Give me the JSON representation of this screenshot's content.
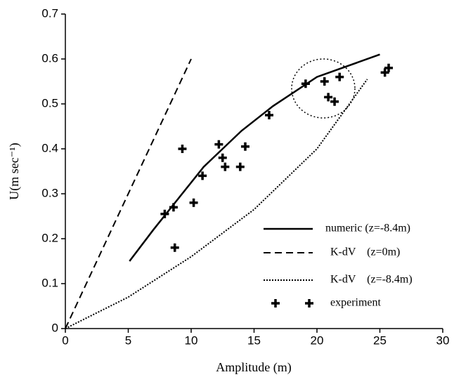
{
  "chart_data": {
    "type": "line",
    "xlabel": "Amplitude (m)",
    "ylabel": "U(m sec⁻¹)",
    "xlim": [
      0,
      30
    ],
    "ylim": [
      0,
      0.7
    ],
    "xticks": [
      0,
      5,
      10,
      15,
      20,
      25,
      30
    ],
    "yticks": [
      0,
      0.1,
      0.2,
      0.3,
      0.4,
      0.5,
      0.6,
      0.7
    ],
    "series": [
      {
        "name": "numeric (z=-8.4m)",
        "style": "solid",
        "color": "#000000",
        "x": [
          5.1,
          7,
          9,
          11,
          14,
          16.5,
          20,
          25
        ],
        "values": [
          0.15,
          0.22,
          0.29,
          0.36,
          0.44,
          0.495,
          0.56,
          0.61
        ]
      },
      {
        "name": "K-dV    (z=0m)",
        "style": "dashed",
        "color": "#000000",
        "x": [
          0,
          10
        ],
        "values": [
          0,
          0.6
        ]
      },
      {
        "name": "K-dV    (z=-8.4m)",
        "style": "dotted",
        "color": "#000000",
        "x": [
          0,
          5,
          10,
          15,
          20,
          24
        ],
        "values": [
          0,
          0.07,
          0.16,
          0.265,
          0.4,
          0.555
        ]
      },
      {
        "name": "experiment",
        "style": "marker",
        "color": "#000000",
        "x": [
          7.9,
          8.6,
          8.7,
          9.3,
          10.2,
          10.9,
          12.2,
          12.5,
          12.7,
          13.9,
          14.3,
          16.2,
          19.1,
          20.6,
          20.9,
          21.4,
          21.8,
          25.4,
          25.7
        ],
        "values": [
          0.255,
          0.27,
          0.18,
          0.4,
          0.28,
          0.34,
          0.41,
          0.38,
          0.36,
          0.36,
          0.405,
          0.475,
          0.545,
          0.55,
          0.515,
          0.505,
          0.56,
          0.57,
          0.58
        ]
      }
    ]
  }
}
